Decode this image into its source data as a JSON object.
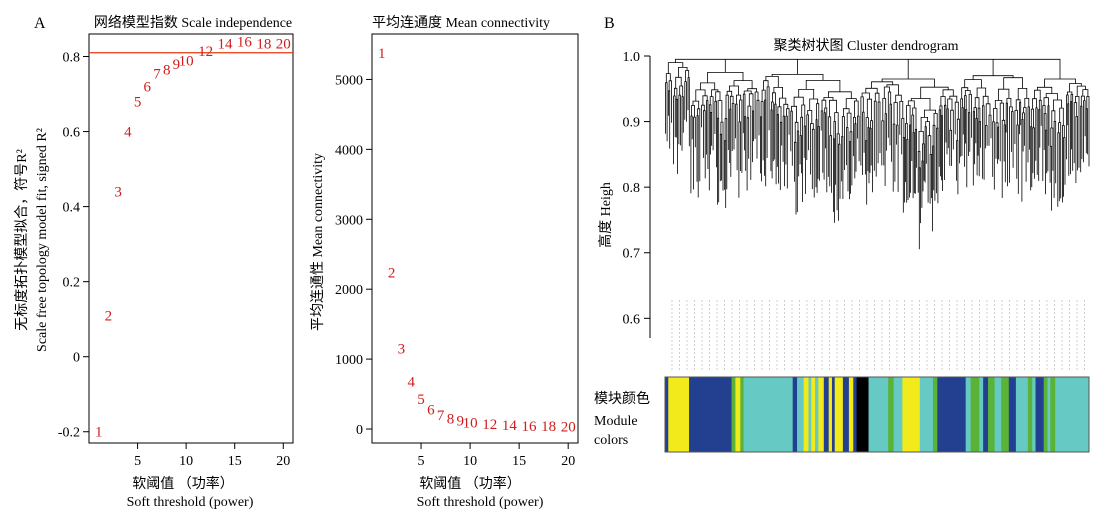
{
  "colors": {
    "label_red": "#d01c1c",
    "threshold_line": "#e8380e",
    "axis": "#000000",
    "dendro": "#000000",
    "module_palette": {
      "yellow": "#f2ea1b",
      "blue": "#22408f",
      "green": "#5ab336",
      "turquoise": "#66c9c3",
      "black": "#000000",
      "grey": "#9a9a9a"
    }
  },
  "panel_labels": {
    "A": "A",
    "B": "B"
  },
  "chart_data": [
    {
      "type": "scatter",
      "panel": "A-left",
      "title": "网络模型指数 Scale independence",
      "xlabel_cn": "软阈值 （功率）",
      "xlabel_en": "Soft threshold (power)",
      "ylabel_cn": "无标度拓扑模型拟合，符号R²",
      "ylabel_en": "Scale free topology model fit, signed R²",
      "xlim": [
        0,
        21
      ],
      "ylim": [
        -0.23,
        0.86
      ],
      "xticks": [
        5,
        10,
        15,
        20
      ],
      "yticks": [
        -0.2,
        0,
        0.2,
        0.4,
        0.6,
        0.8
      ],
      "ytick_labels": [
        "-0.2",
        "0",
        "0.2",
        "0.4",
        "0.6",
        "0.8"
      ],
      "threshold_line": 0.81,
      "points": [
        {
          "label": "1",
          "x": 1,
          "y": -0.2
        },
        {
          "label": "2",
          "x": 2,
          "y": 0.11
        },
        {
          "label": "3",
          "x": 3,
          "y": 0.44
        },
        {
          "label": "4",
          "x": 4,
          "y": 0.6
        },
        {
          "label": "5",
          "x": 5,
          "y": 0.68
        },
        {
          "label": "6",
          "x": 6,
          "y": 0.72
        },
        {
          "label": "7",
          "x": 7,
          "y": 0.755
        },
        {
          "label": "8",
          "x": 8,
          "y": 0.765
        },
        {
          "label": "9",
          "x": 9,
          "y": 0.78
        },
        {
          "label": "10",
          "x": 10,
          "y": 0.79
        },
        {
          "label": "12",
          "x": 12,
          "y": 0.815
        },
        {
          "label": "14",
          "x": 14,
          "y": 0.835
        },
        {
          "label": "16",
          "x": 16,
          "y": 0.84
        },
        {
          "label": "18",
          "x": 18,
          "y": 0.835
        },
        {
          "label": "20",
          "x": 20,
          "y": 0.835
        }
      ]
    },
    {
      "type": "scatter",
      "panel": "A-right",
      "title": "平均连通度 Mean connectivity",
      "xlabel_cn": "软阈值 （功率）",
      "xlabel_en": "Soft threshold (power)",
      "ylabel": "平均连通性 Mean connectivity",
      "xlim": [
        0,
        21
      ],
      "ylim": [
        -200,
        5650
      ],
      "xticks": [
        5,
        10,
        15,
        20
      ],
      "yticks": [
        0,
        1000,
        2000,
        3000,
        4000,
        5000
      ],
      "points": [
        {
          "label": "1",
          "x": 1,
          "y": 5380
        },
        {
          "label": "2",
          "x": 2,
          "y": 2240
        },
        {
          "label": "3",
          "x": 3,
          "y": 1150
        },
        {
          "label": "4",
          "x": 4,
          "y": 680
        },
        {
          "label": "5",
          "x": 5,
          "y": 430
        },
        {
          "label": "6",
          "x": 6,
          "y": 280
        },
        {
          "label": "7",
          "x": 7,
          "y": 200
        },
        {
          "label": "8",
          "x": 8,
          "y": 150
        },
        {
          "label": "9",
          "x": 9,
          "y": 120
        },
        {
          "label": "10",
          "x": 10,
          "y": 90
        },
        {
          "label": "12",
          "x": 12,
          "y": 70
        },
        {
          "label": "14",
          "x": 14,
          "y": 55
        },
        {
          "label": "16",
          "x": 16,
          "y": 45
        },
        {
          "label": "18",
          "x": 18,
          "y": 40
        },
        {
          "label": "20",
          "x": 20,
          "y": 35
        }
      ]
    },
    {
      "type": "dendrogram",
      "panel": "B",
      "title": "聚类树状图 Cluster dendrogram",
      "ylabel": "高度 Heigh",
      "ylim": [
        0.57,
        1.0
      ],
      "yticks": [
        0.6,
        0.7,
        0.8,
        0.9,
        1.0
      ],
      "ytick_labels": [
        "0.6",
        "0.7",
        "0.8",
        "0.9",
        "1.0"
      ],
      "module_label_cn": "模块颜色",
      "module_label_en_1": "Module",
      "module_label_en_2": "colors",
      "modules": [
        {
          "color": "blue",
          "w": 0.6
        },
        {
          "color": "yellow",
          "w": 3.8
        },
        {
          "color": "blue",
          "w": 7.8
        },
        {
          "color": "green",
          "w": 0.7
        },
        {
          "color": "yellow",
          "w": 0.9
        },
        {
          "color": "green",
          "w": 0.6
        },
        {
          "color": "turquoise",
          "w": 9.0
        },
        {
          "color": "blue",
          "w": 0.8
        },
        {
          "color": "turquoise",
          "w": 1.2
        },
        {
          "color": "yellow",
          "w": 0.9
        },
        {
          "color": "turquoise",
          "w": 0.5
        },
        {
          "color": "yellow",
          "w": 0.7
        },
        {
          "color": "turquoise",
          "w": 0.6
        },
        {
          "color": "yellow",
          "w": 1.0
        },
        {
          "color": "blue",
          "w": 0.9
        },
        {
          "color": "yellow",
          "w": 0.6
        },
        {
          "color": "blue",
          "w": 0.5
        },
        {
          "color": "yellow",
          "w": 1.5
        },
        {
          "color": "blue",
          "w": 1.1
        },
        {
          "color": "yellow",
          "w": 0.8
        },
        {
          "color": "blue",
          "w": 0.6
        },
        {
          "color": "black",
          "w": 2.2
        },
        {
          "color": "turquoise",
          "w": 3.6
        },
        {
          "color": "green",
          "w": 1.0
        },
        {
          "color": "turquoise",
          "w": 1.6
        },
        {
          "color": "yellow",
          "w": 3.2
        },
        {
          "color": "turquoise",
          "w": 2.4
        },
        {
          "color": "green",
          "w": 0.8
        },
        {
          "color": "blue",
          "w": 5.2
        },
        {
          "color": "turquoise",
          "w": 0.9
        },
        {
          "color": "green",
          "w": 1.6
        },
        {
          "color": "turquoise",
          "w": 0.7
        },
        {
          "color": "blue",
          "w": 0.9
        },
        {
          "color": "green",
          "w": 1.2
        },
        {
          "color": "turquoise",
          "w": 1.2
        },
        {
          "color": "green",
          "w": 1.4
        },
        {
          "color": "blue",
          "w": 1.3
        },
        {
          "color": "turquoise",
          "w": 2.2
        },
        {
          "color": "green",
          "w": 0.8
        },
        {
          "color": "turquoise",
          "w": 0.6
        },
        {
          "color": "blue",
          "w": 1.5
        },
        {
          "color": "green",
          "w": 0.7
        },
        {
          "color": "turquoise",
          "w": 0.5
        },
        {
          "color": "green",
          "w": 0.9
        },
        {
          "color": "turquoise",
          "w": 6.2
        }
      ]
    }
  ]
}
